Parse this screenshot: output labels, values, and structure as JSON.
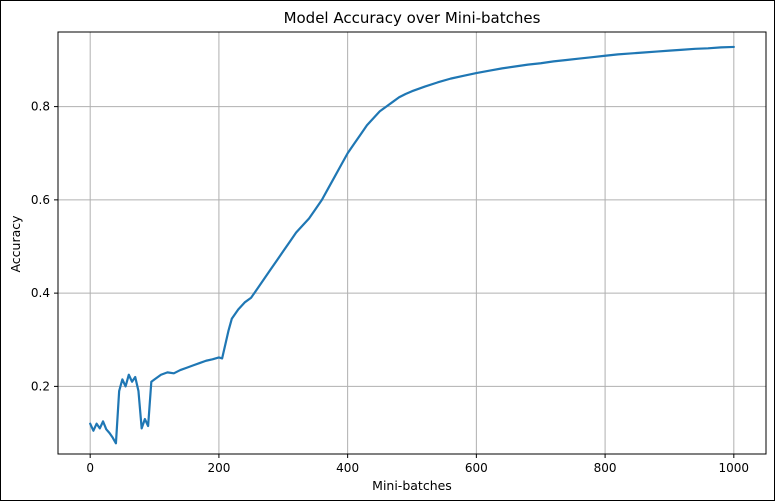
{
  "chart_data": {
    "type": "line",
    "title": "Model Accuracy over Mini-batches",
    "xlabel": "Mini-batches",
    "ylabel": "Accuracy",
    "xlim": [
      -50,
      1050
    ],
    "ylim": [
      0.055,
      0.96
    ],
    "xticks": [
      0,
      200,
      400,
      600,
      800,
      1000
    ],
    "yticks": [
      0.2,
      0.4,
      0.6,
      0.8
    ],
    "xtick_labels": [
      "0",
      "200",
      "400",
      "600",
      "800",
      "1000"
    ],
    "ytick_labels": [
      "0.2",
      "0.4",
      "0.6",
      "0.8"
    ],
    "grid": true,
    "line_color": "#1f77b4",
    "series": [
      {
        "x": [
          0,
          5,
          10,
          15,
          20,
          25,
          30,
          35,
          40,
          45,
          50,
          55,
          60,
          65,
          70,
          75,
          80,
          85,
          90,
          95,
          100,
          110,
          120,
          130,
          140,
          150,
          160,
          170,
          180,
          190,
          200,
          205,
          210,
          215,
          220,
          230,
          240,
          250,
          260,
          270,
          280,
          290,
          300,
          310,
          320,
          330,
          340,
          350,
          360,
          370,
          380,
          390,
          400,
          410,
          420,
          430,
          440,
          450,
          460,
          470,
          480,
          490,
          500,
          520,
          540,
          560,
          580,
          600,
          620,
          640,
          660,
          680,
          700,
          720,
          740,
          760,
          780,
          800,
          820,
          840,
          860,
          880,
          900,
          920,
          940,
          960,
          980,
          1000
        ],
        "y": [
          0.12,
          0.105,
          0.12,
          0.11,
          0.125,
          0.108,
          0.1,
          0.09,
          0.078,
          0.19,
          0.215,
          0.2,
          0.225,
          0.21,
          0.22,
          0.19,
          0.11,
          0.13,
          0.115,
          0.21,
          0.215,
          0.225,
          0.23,
          0.228,
          0.235,
          0.24,
          0.245,
          0.25,
          0.255,
          0.258,
          0.262,
          0.26,
          0.29,
          0.32,
          0.345,
          0.365,
          0.38,
          0.39,
          0.41,
          0.43,
          0.45,
          0.47,
          0.49,
          0.51,
          0.53,
          0.545,
          0.56,
          0.58,
          0.6,
          0.625,
          0.65,
          0.675,
          0.7,
          0.72,
          0.74,
          0.76,
          0.775,
          0.79,
          0.8,
          0.81,
          0.82,
          0.827,
          0.833,
          0.843,
          0.852,
          0.86,
          0.866,
          0.872,
          0.877,
          0.882,
          0.886,
          0.89,
          0.893,
          0.897,
          0.9,
          0.903,
          0.906,
          0.909,
          0.912,
          0.914,
          0.916,
          0.918,
          0.92,
          0.922,
          0.924,
          0.925,
          0.927,
          0.928
        ]
      }
    ]
  }
}
